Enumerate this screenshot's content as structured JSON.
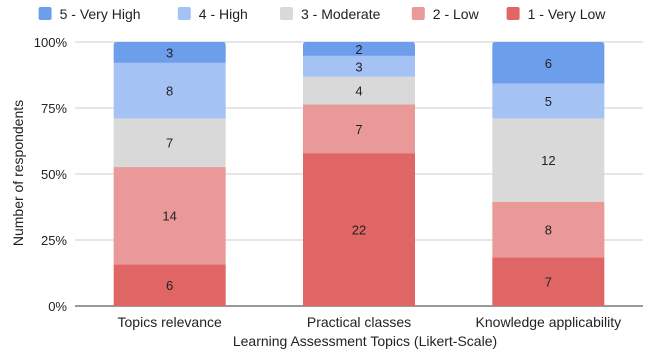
{
  "chart_data": {
    "type": "bar",
    "stacked": true,
    "normalized": true,
    "title": "",
    "xlabel": "Learning Assessment Topics (Likert-Scale)",
    "ylabel": "Number of respondents",
    "ylim": [
      0,
      100
    ],
    "yticks": [
      "0%",
      "25%",
      "50%",
      "75%",
      "100%"
    ],
    "grid": true,
    "legend_position": "top",
    "categories": [
      "Topics relevance",
      "Practical classes",
      "Knowledge applicability"
    ],
    "series": [
      {
        "name": "1 - Very Low",
        "color": "#e06666",
        "values": [
          6,
          22,
          7
        ]
      },
      {
        "name": "2 - Low",
        "color": "#ea9999",
        "values": [
          14,
          7,
          8
        ]
      },
      {
        "name": "3 - Moderate",
        "color": "#d9d9d9",
        "values": [
          7,
          4,
          12
        ]
      },
      {
        "name": "4 - High",
        "color": "#a4c2f4",
        "values": [
          8,
          3,
          5
        ]
      },
      {
        "name": "5 - Very High",
        "color": "#6d9eeb",
        "values": [
          3,
          2,
          6
        ]
      }
    ],
    "legend_order": [
      "5 - Very High",
      "4 - High",
      "3 - Moderate",
      "2 - Low",
      "1 - Very Low"
    ]
  }
}
